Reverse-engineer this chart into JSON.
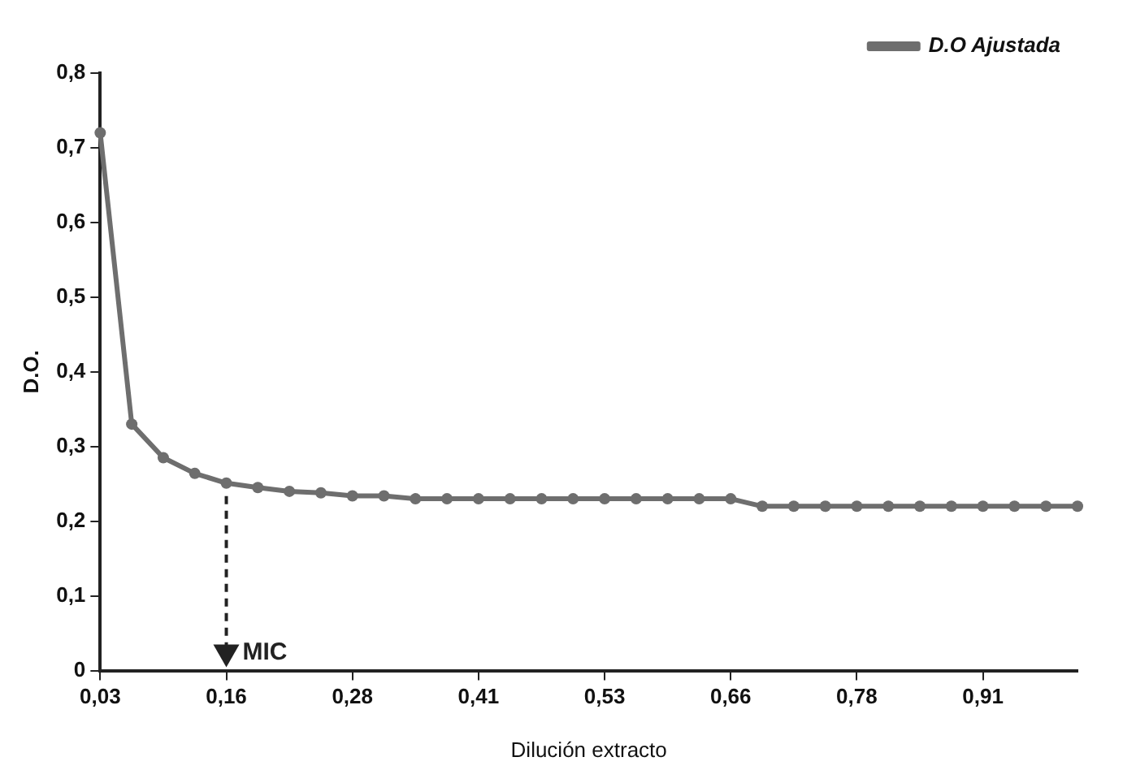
{
  "chart_data": {
    "type": "line",
    "xlabel": "Dilución extracto",
    "ylabel": "D.O.",
    "categories": [
      "0,03",
      null,
      null,
      null,
      "0,16",
      null,
      null,
      null,
      "0,28",
      null,
      null,
      null,
      "0,41",
      null,
      null,
      null,
      "0,53",
      null,
      null,
      null,
      "0,66",
      null,
      null,
      null,
      "0,78",
      null,
      null,
      null,
      "0,91",
      null,
      null,
      null
    ],
    "series": [
      {
        "name": "D.O Ajustada",
        "color": "#6e6e6e",
        "values": [
          0.72,
          0.33,
          0.285,
          0.264,
          0.251,
          0.245,
          0.24,
          0.238,
          0.234,
          0.234,
          0.23,
          0.23,
          0.23,
          0.23,
          0.23,
          0.23,
          0.23,
          0.23,
          0.23,
          0.23,
          0.23,
          0.22,
          0.22,
          0.22,
          0.22,
          0.22,
          0.22,
          0.22,
          0.22,
          0.22,
          0.22,
          0.22
        ]
      }
    ],
    "ylim": [
      0,
      0.8
    ],
    "yticks": [
      0,
      {
        "value": 0.1,
        "label": "0,1"
      },
      {
        "value": 0.2,
        "label": "0,2"
      },
      {
        "value": 0.3,
        "label": "0,3"
      },
      {
        "value": 0.4,
        "label": "0,4"
      },
      {
        "value": 0.5,
        "label": "0,5"
      },
      {
        "value": 0.6,
        "label": "0,6"
      },
      {
        "value": 0.7,
        "label": "0,7"
      },
      {
        "value": 0.8,
        "label": "0,8"
      }
    ],
    "annotations": [
      {
        "text": "MIC",
        "x": "0,16",
        "y": 0.251
      }
    ],
    "legend": "top right",
    "grid": false,
    "marker": "circle",
    "line_style": "solid"
  }
}
